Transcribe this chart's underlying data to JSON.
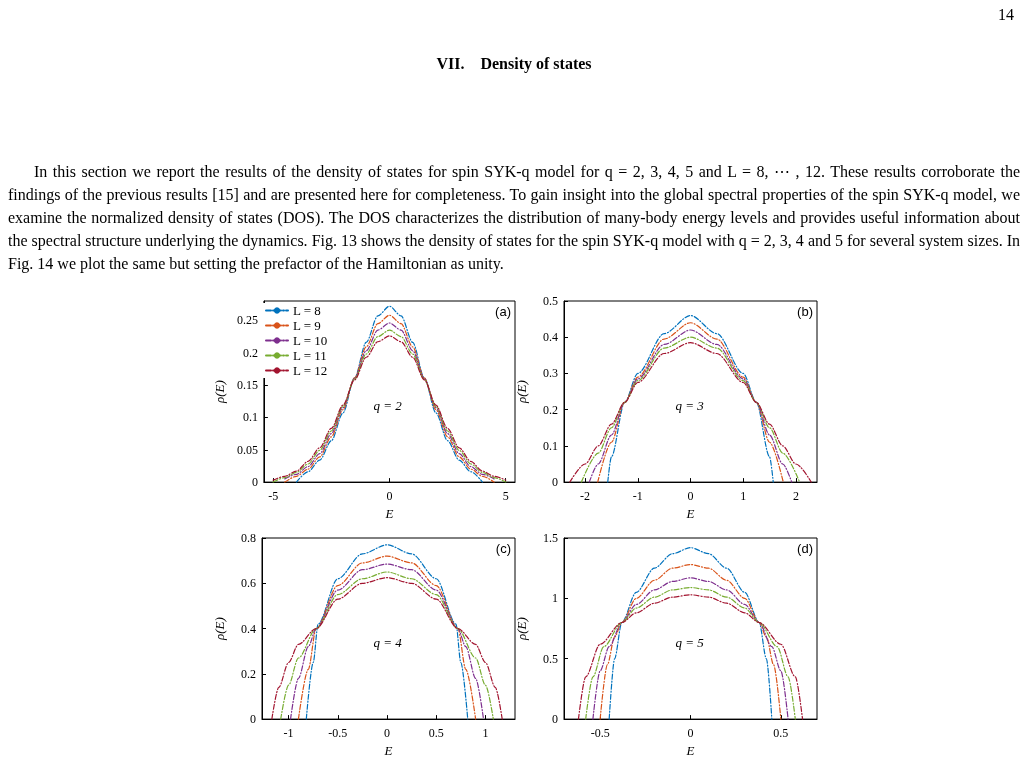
{
  "chart_data": [
    {
      "type": "line",
      "xlabel": "E",
      "ylabel": "ρ(E)",
      "xlim": [
        -5.4,
        5.4
      ],
      "xticks": [
        -5,
        0,
        5
      ],
      "ylim": [
        0,
        0.28
      ],
      "yticks": [
        0,
        0.05,
        0.1,
        0.15,
        0.2,
        0.25
      ],
      "grid": false,
      "legend": "top left",
      "marker": "none",
      "line_style": "dashed",
      "annotations": [
        "(a)",
        "q = 2",
        "14",
        "VII.    Density of states",
        "In this section we report the results of the density of states for spin SYK-q model for q = 2, 3, 4, 5 and L = 8, ⋯ , 12. These results corroborate the findings of the previous results [15] and are presented here for completeness. To gain insight into the global spectral properties of the spin SYK-q model, we examine the normalized density of states (DOS). The DOS characterizes the distribution of many-body energy levels and provides useful information about the spectral structure underlying the dynamics. Fig. 13 shows the density of states for the spin SYK-q model with q = 2, 3, 4 and 5 for several system sizes. In Fig. 14 we plot the same but setting the prefactor of the Hamiltonian as unity."
      ],
      "x": [
        -5,
        -4.5,
        -4,
        -3.5,
        -3,
        -2.5,
        -2,
        -1.5,
        -1,
        -0.5,
        0,
        0.5,
        1,
        1.5,
        2,
        2.5,
        3,
        3.5,
        4,
        4.5,
        5
      ],
      "series": [
        {
          "name": "L = 8",
          "color": "#0072bd",
          "values": [
            null,
            null,
            0,
            0.016,
            0.034,
            0.064,
            0.107,
            0.161,
            0.216,
            0.257,
            0.272,
            0.257,
            0.216,
            0.161,
            0.107,
            0.064,
            0.034,
            0.016,
            0,
            null,
            null
          ]
        },
        {
          "name": "L = 9",
          "color": "#d95319",
          "values": [
            null,
            0,
            0.009,
            0.02,
            0.039,
            0.07,
            0.112,
            0.161,
            0.209,
            0.245,
            0.258,
            0.245,
            0.209,
            0.161,
            0.112,
            0.07,
            0.039,
            0.02,
            0.009,
            0,
            null
          ]
        },
        {
          "name": "L = 10",
          "color": "#7e2f8e",
          "values": [
            null,
            0.005,
            0.012,
            0.024,
            0.044,
            0.075,
            0.115,
            0.16,
            0.203,
            0.235,
            0.246,
            0.235,
            0.203,
            0.16,
            0.115,
            0.075,
            0.044,
            0.024,
            0.012,
            0.005,
            null
          ]
        },
        {
          "name": "L = 11",
          "color": "#77ac30",
          "values": [
            0,
            0.007,
            0.015,
            0.028,
            0.049,
            0.079,
            0.117,
            0.159,
            0.198,
            0.225,
            0.235,
            0.225,
            0.198,
            0.159,
            0.117,
            0.079,
            0.049,
            0.028,
            0.015,
            0.007,
            0
          ]
        },
        {
          "name": "L = 12",
          "color": "#a2142f",
          "values": [
            0.003,
            0.009,
            0.017,
            0.032,
            0.053,
            0.083,
            0.119,
            0.158,
            0.193,
            0.217,
            0.226,
            0.217,
            0.193,
            0.158,
            0.119,
            0.083,
            0.053,
            0.032,
            0.017,
            0.009,
            0.003
          ]
        }
      ]
    },
    {
      "type": "line",
      "xlabel": "E",
      "ylabel": "ρ(E)",
      "xlim": [
        -2.4,
        2.4
      ],
      "xticks": [
        -2,
        -1,
        0,
        1,
        2
      ],
      "ylim": [
        0,
        0.5
      ],
      "yticks": [
        0,
        0.1,
        0.2,
        0.3,
        0.4,
        0.5
      ],
      "grid": false,
      "marker": "none",
      "line_style": "dashed",
      "annotations": [
        "(b)",
        "q = 3"
      ],
      "series": [
        {
          "color": "#0072bd",
          "x": [
            -1.57,
            -1.5,
            -1.25,
            -1,
            -0.5,
            0,
            0.5,
            1,
            1.25,
            1.5,
            1.57
          ],
          "values": [
            0,
            0.07,
            0.22,
            0.3,
            0.41,
            0.46,
            0.41,
            0.3,
            0.22,
            0.07,
            0
          ]
        },
        {
          "color": "#d95319",
          "x": [
            -1.76,
            -1.5,
            -1.25,
            -1,
            -0.5,
            0,
            0.5,
            1,
            1.25,
            1.5,
            1.76
          ],
          "values": [
            0,
            0.11,
            0.22,
            0.29,
            0.395,
            0.44,
            0.395,
            0.29,
            0.22,
            0.11,
            0
          ]
        },
        {
          "color": "#7e2f8e",
          "x": [
            -1.92,
            -1.75,
            -1.5,
            -1.25,
            -1,
            -0.5,
            0,
            0.5,
            1,
            1.25,
            1.5,
            1.75,
            1.92
          ],
          "values": [
            0,
            0.05,
            0.13,
            0.22,
            0.285,
            0.38,
            0.42,
            0.38,
            0.285,
            0.22,
            0.13,
            0.05,
            0
          ]
        },
        {
          "color": "#77ac30",
          "x": [
            -2.07,
            -1.75,
            -1.5,
            -1.25,
            -1,
            -0.5,
            0,
            0.5,
            1,
            1.25,
            1.5,
            1.75,
            2.07
          ],
          "values": [
            0,
            0.08,
            0.15,
            0.22,
            0.28,
            0.37,
            0.4,
            0.37,
            0.28,
            0.22,
            0.15,
            0.08,
            0
          ]
        },
        {
          "color": "#a2142f",
          "x": [
            -2.29,
            -2,
            -1.75,
            -1.5,
            -1.25,
            -1,
            -0.5,
            0,
            0.5,
            1,
            1.25,
            1.5,
            1.75,
            2,
            2.29
          ],
          "values": [
            0,
            0.05,
            0.1,
            0.16,
            0.22,
            0.275,
            0.355,
            0.385,
            0.355,
            0.275,
            0.22,
            0.16,
            0.1,
            0.05,
            0
          ]
        }
      ]
    },
    {
      "type": "line",
      "xlabel": "E",
      "ylabel": "ρ(E)",
      "xlim": [
        -1.27,
        1.3
      ],
      "xticks": [
        -1,
        -0.5,
        0,
        0.5,
        1
      ],
      "ylim": [
        0,
        0.8
      ],
      "yticks": [
        0,
        0.2,
        0.4,
        0.6,
        0.8
      ],
      "grid": false,
      "marker": "none",
      "line_style": "dashed",
      "annotations": [
        "(c)",
        "q = 4"
      ],
      "series": [
        {
          "color": "#0072bd",
          "x": [
            -0.82,
            -0.75,
            -0.7,
            -0.5,
            -0.25,
            0,
            0.25,
            0.5,
            0.7,
            0.75,
            0.82
          ],
          "values": [
            0,
            0.25,
            0.42,
            0.62,
            0.73,
            0.77,
            0.73,
            0.62,
            0.42,
            0.25,
            0
          ]
        },
        {
          "color": "#d95319",
          "x": [
            -0.9,
            -0.8,
            -0.72,
            -0.5,
            -0.25,
            0,
            0.25,
            0.5,
            0.72,
            0.8,
            0.9
          ],
          "values": [
            0,
            0.22,
            0.4,
            0.59,
            0.69,
            0.72,
            0.69,
            0.59,
            0.4,
            0.22,
            0
          ]
        },
        {
          "color": "#7e2f8e",
          "x": [
            -0.98,
            -0.9,
            -0.8,
            -0.72,
            -0.5,
            -0.25,
            0,
            0.25,
            0.5,
            0.72,
            0.8,
            0.9,
            0.98
          ],
          "values": [
            0,
            0.18,
            0.32,
            0.4,
            0.57,
            0.66,
            0.685,
            0.66,
            0.57,
            0.4,
            0.32,
            0.18,
            0
          ]
        },
        {
          "color": "#77ac30",
          "x": [
            -1.08,
            -1,
            -0.9,
            -0.72,
            -0.5,
            -0.25,
            0,
            0.25,
            0.5,
            0.72,
            0.9,
            1,
            1.08
          ],
          "values": [
            0,
            0.15,
            0.27,
            0.4,
            0.55,
            0.62,
            0.65,
            0.62,
            0.55,
            0.4,
            0.27,
            0.15,
            0
          ]
        },
        {
          "color": "#a2142f",
          "x": [
            -1.17,
            -1.1,
            -1,
            -0.9,
            -0.72,
            -0.5,
            -0.25,
            0,
            0.25,
            0.5,
            0.72,
            0.9,
            1,
            1.1,
            1.17
          ],
          "values": [
            0,
            0.14,
            0.25,
            0.33,
            0.4,
            0.53,
            0.6,
            0.625,
            0.6,
            0.53,
            0.4,
            0.33,
            0.25,
            0.14,
            0
          ]
        }
      ]
    },
    {
      "type": "line",
      "xlabel": "E",
      "ylabel": "ρ(E)",
      "xlim": [
        -0.7,
        0.7
      ],
      "xticks": [
        -0.5,
        0,
        0.5
      ],
      "ylim": [
        0,
        1.5
      ],
      "yticks": [
        0,
        0.5,
        1,
        1.5
      ],
      "grid": false,
      "marker": "none",
      "line_style": "dashed",
      "annotations": [
        "(d)",
        "q = 5"
      ],
      "series": [
        {
          "color": "#0072bd",
          "x": [
            -0.45,
            -0.42,
            -0.38,
            -0.3,
            -0.2,
            -0.1,
            0,
            0.1,
            0.2,
            0.3,
            0.38,
            0.42,
            0.45
          ],
          "values": [
            0,
            0.5,
            0.8,
            1.05,
            1.25,
            1.37,
            1.42,
            1.37,
            1.25,
            1.05,
            0.8,
            0.5,
            0
          ]
        },
        {
          "color": "#d95319",
          "x": [
            -0.5,
            -0.46,
            -0.42,
            -0.38,
            -0.3,
            -0.2,
            -0.1,
            0,
            0.1,
            0.2,
            0.3,
            0.38,
            0.42,
            0.46,
            0.5
          ],
          "values": [
            0,
            0.45,
            0.68,
            0.8,
            1,
            1.15,
            1.25,
            1.28,
            1.25,
            1.15,
            1,
            0.8,
            0.68,
            0.45,
            0
          ]
        },
        {
          "color": "#7e2f8e",
          "x": [
            -0.54,
            -0.5,
            -0.45,
            -0.38,
            -0.3,
            -0.2,
            -0.1,
            0,
            0.1,
            0.2,
            0.3,
            0.38,
            0.45,
            0.5,
            0.54
          ],
          "values": [
            0,
            0.4,
            0.6,
            0.8,
            0.95,
            1.07,
            1.14,
            1.17,
            1.14,
            1.07,
            0.95,
            0.8,
            0.6,
            0.4,
            0
          ]
        },
        {
          "color": "#77ac30",
          "x": [
            -0.58,
            -0.54,
            -0.48,
            -0.38,
            -0.3,
            -0.2,
            -0.1,
            0,
            0.1,
            0.2,
            0.3,
            0.38,
            0.48,
            0.54,
            0.58
          ],
          "values": [
            0,
            0.35,
            0.6,
            0.8,
            0.92,
            1.01,
            1.07,
            1.09,
            1.07,
            1.01,
            0.92,
            0.8,
            0.6,
            0.35,
            0
          ]
        },
        {
          "color": "#a2142f",
          "x": [
            -0.62,
            -0.58,
            -0.5,
            -0.38,
            -0.3,
            -0.2,
            -0.1,
            0,
            0.1,
            0.2,
            0.3,
            0.38,
            0.5,
            0.58,
            0.62
          ],
          "values": [
            0,
            0.35,
            0.62,
            0.8,
            0.88,
            0.96,
            1.01,
            1.03,
            1.01,
            0.96,
            0.88,
            0.8,
            0.62,
            0.35,
            0
          ]
        }
      ]
    }
  ]
}
